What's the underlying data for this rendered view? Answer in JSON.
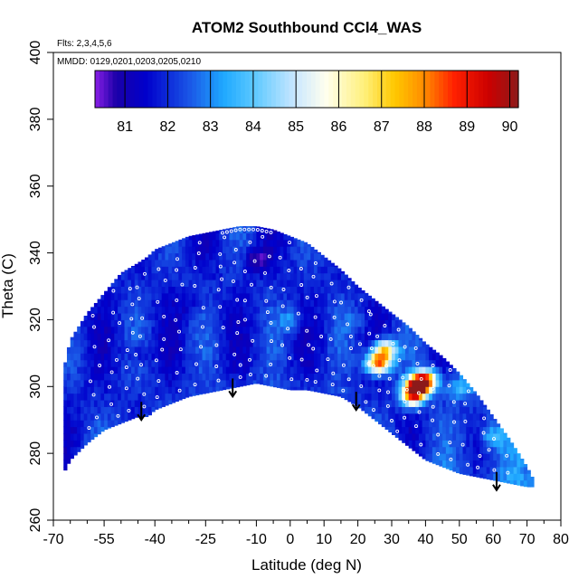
{
  "chart_data": {
    "type": "heatmap",
    "title": "ATOM2 Southbound CCl4_WAS",
    "flights_note": "Flts: 2,3,4,5,6",
    "dates_note": "MMDD: 0129,0201,0203,0205,0210",
    "xlabel": "Latitude (deg N)",
    "ylabel": "Theta (C)",
    "xlim": [
      -70,
      80
    ],
    "ylim": [
      260,
      400
    ],
    "x_ticks": [
      {
        "value": -70,
        "label": "-70"
      },
      {
        "value": -55,
        "label": "-55"
      },
      {
        "value": -40,
        "label": "-40"
      },
      {
        "value": -25,
        "label": "-25"
      },
      {
        "value": -10,
        "label": "-10"
      },
      {
        "value": 0,
        "label": "0"
      },
      {
        "value": 10,
        "label": "10"
      },
      {
        "value": 20,
        "label": "20"
      },
      {
        "value": 30,
        "label": "30"
      },
      {
        "value": 40,
        "label": "40"
      },
      {
        "value": 50,
        "label": "50"
      },
      {
        "value": 60,
        "label": "60"
      },
      {
        "value": 70,
        "label": "70"
      },
      {
        "value": 80,
        "label": "80"
      }
    ],
    "y_ticks": [
      {
        "value": 260,
        "label": "260"
      },
      {
        "value": 280,
        "label": "280"
      },
      {
        "value": 300,
        "label": "300"
      },
      {
        "value": 320,
        "label": "320"
      },
      {
        "value": 340,
        "label": "340"
      },
      {
        "value": 360,
        "label": "360"
      },
      {
        "value": 380,
        "label": "380"
      },
      {
        "value": 400,
        "label": "400"
      }
    ],
    "colorbar": {
      "min": 80.3,
      "max": 90.2,
      "ticks": [
        {
          "value": 81,
          "label": "81"
        },
        {
          "value": 82,
          "label": "82"
        },
        {
          "value": 83,
          "label": "83"
        },
        {
          "value": 84,
          "label": "84"
        },
        {
          "value": 85,
          "label": "85"
        },
        {
          "value": 86,
          "label": "86"
        },
        {
          "value": 87,
          "label": "87"
        },
        {
          "value": 88,
          "label": "88"
        },
        {
          "value": 89,
          "label": "89"
        },
        {
          "value": 90,
          "label": "90"
        }
      ],
      "color_stops": [
        {
          "value": 80.3,
          "color": "#8a1ee6"
        },
        {
          "value": 80.8,
          "color": "#1a00a8"
        },
        {
          "value": 81.5,
          "color": "#0000cc"
        },
        {
          "value": 82.5,
          "color": "#1a55e6"
        },
        {
          "value": 83.3,
          "color": "#1ea8ff"
        },
        {
          "value": 84.0,
          "color": "#5ac8ff"
        },
        {
          "value": 85.0,
          "color": "#cce8ff"
        },
        {
          "value": 85.7,
          "color": "#ffffee"
        },
        {
          "value": 86.6,
          "color": "#fff07a"
        },
        {
          "value": 87.3,
          "color": "#ffc800"
        },
        {
          "value": 88.0,
          "color": "#ff8c00"
        },
        {
          "value": 88.7,
          "color": "#ff2000"
        },
        {
          "value": 89.5,
          "color": "#cc0000"
        },
        {
          "value": 90.2,
          "color": "#8c1a1a"
        }
      ]
    },
    "domain_envelope": {
      "latitude": [
        -67,
        -65,
        -60,
        -55,
        -50,
        -45,
        -42,
        -40,
        -35,
        -30,
        -25,
        -20,
        -15,
        -10,
        -5,
        0,
        5,
        10,
        15,
        20,
        25,
        30,
        35,
        40,
        45,
        50,
        55,
        60,
        65,
        70,
        72
      ],
      "theta_bottom": [
        274,
        278,
        283,
        287,
        289,
        291,
        291,
        293,
        295,
        297,
        298,
        299,
        300,
        301,
        300,
        299,
        299,
        298,
        297,
        294,
        290,
        286,
        282,
        278,
        276,
        274,
        273,
        272,
        271,
        270,
        270
      ],
      "theta_top": [
        305,
        314,
        322,
        328,
        334,
        337,
        339,
        341,
        343,
        345,
        346,
        347,
        348,
        348,
        347,
        345,
        343,
        339,
        335,
        330,
        326,
        322,
        318,
        313,
        309,
        304,
        298,
        291,
        284,
        276,
        272
      ]
    },
    "field_features": [
      {
        "latitude": 37.5,
        "theta": 300,
        "value": 89.3
      },
      {
        "latitude": 40,
        "theta": 302,
        "value": 87.8
      },
      {
        "latitude": 36,
        "theta": 297,
        "value": 86.5
      },
      {
        "latitude": 26,
        "theta": 307,
        "value": 88.3
      },
      {
        "latitude": 28,
        "theta": 311,
        "value": 87.0
      },
      {
        "latitude": -10,
        "theta": 338,
        "value": 80.6
      },
      {
        "latitude": 0,
        "theta": 320,
        "value": 83.2
      },
      {
        "latitude": 50,
        "theta": 300,
        "value": 83.6
      },
      {
        "latitude": 60,
        "theta": 285,
        "value": 83.4
      },
      {
        "latitude": -45,
        "theta": 310,
        "value": 81.3
      },
      {
        "latitude": 20,
        "theta": 320,
        "value": 82.6
      },
      {
        "latitude": -30,
        "theta": 325,
        "value": 81.5
      }
    ],
    "tropopause_arrows": [
      {
        "latitude": -44,
        "theta": 290
      },
      {
        "latitude": -17,
        "theta": 297
      },
      {
        "latitude": 19.5,
        "theta": 293
      },
      {
        "latitude": 61,
        "theta": 269
      }
    ],
    "grid": false,
    "legend_placement": "top (horizontal colorbar)"
  }
}
